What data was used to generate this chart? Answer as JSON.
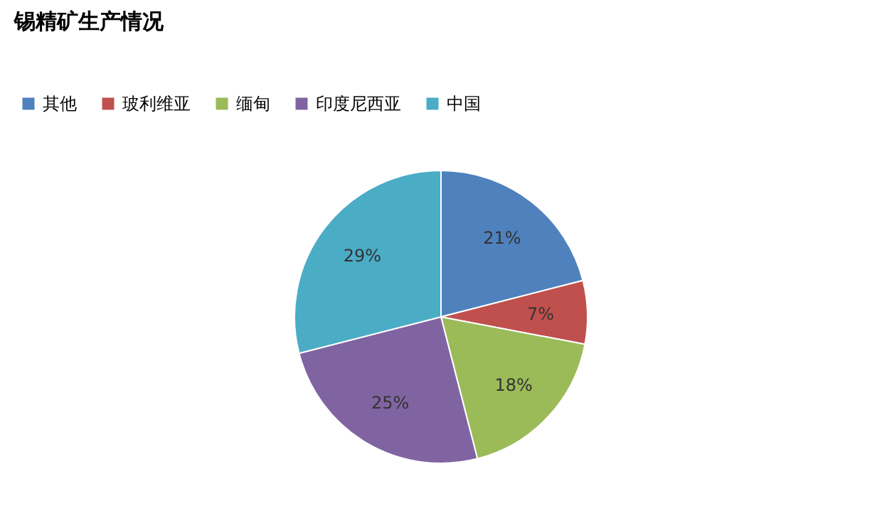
{
  "chart_data": {
    "type": "pie",
    "title": "锡精矿生产情况",
    "categories": [
      "其他",
      "玻利维亚",
      "缅甸",
      "印度尼西亚",
      "中国"
    ],
    "values": [
      21,
      7,
      18,
      25,
      29
    ],
    "colors": [
      "#4f81bd",
      "#c0504d",
      "#9bbb59",
      "#8064a2",
      "#4bacc6"
    ],
    "value_labels": [
      "21%",
      "7%",
      "18%",
      "25%",
      "29%"
    ],
    "legend": "top"
  }
}
